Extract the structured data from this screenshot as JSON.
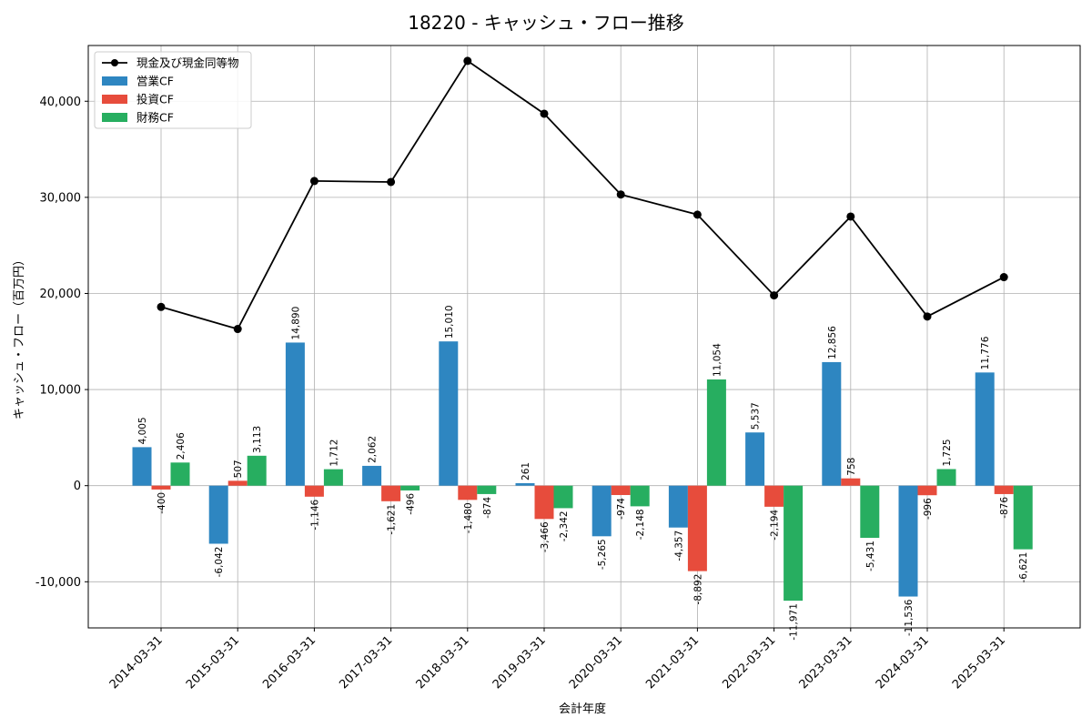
{
  "chart_data": {
    "type": "bar",
    "title": "18220 - キャッシュ・フロー推移",
    "xlabel": "会計年度",
    "ylabel": "キャッシュ・フロー（百万円）",
    "categories": [
      "2014-03-31",
      "2015-03-31",
      "2016-03-31",
      "2017-03-31",
      "2018-03-31",
      "2019-03-31",
      "2020-03-31",
      "2021-03-31",
      "2022-03-31",
      "2023-03-31",
      "2024-03-31",
      "2025-03-31"
    ],
    "series": [
      {
        "name": "営業CF",
        "kind": "bar",
        "color": "#2e86c1",
        "values": [
          4005,
          -6042,
          14890,
          2062,
          15010,
          261,
          -5265,
          -4357,
          5537,
          12856,
          -11536,
          11776
        ],
        "labels": [
          "4,005",
          "-6,042",
          "14,890",
          "2,062",
          "15,010",
          "261",
          "-5,265",
          "-4,357",
          "5,537",
          "12,856",
          "-11,536",
          "11,776"
        ]
      },
      {
        "name": "投資CF",
        "kind": "bar",
        "color": "#e74c3c",
        "values": [
          -400,
          507,
          -1146,
          -1621,
          -1480,
          -3466,
          -974,
          -8892,
          -2194,
          758,
          -996,
          -876
        ],
        "labels": [
          "-400",
          "507",
          "-1,146",
          "-1,621",
          "-1,480",
          "-3,466",
          "-974",
          "-8,892",
          "-2,194",
          "758",
          "-996",
          "-876"
        ]
      },
      {
        "name": "財務CF",
        "kind": "bar",
        "color": "#27ae60",
        "values": [
          2406,
          3113,
          1712,
          -496,
          -874,
          -2342,
          -2148,
          11054,
          -11971,
          -5431,
          1725,
          -6621
        ],
        "labels": [
          "2,406",
          "3,113",
          "1,712",
          "-496",
          "-874",
          "-2,342",
          "-2,148",
          "11,054",
          "-11,971",
          "-5,431",
          "1,725",
          "-6,621"
        ]
      },
      {
        "name": "現金及び現金同等物",
        "kind": "line",
        "color": "#000000",
        "values": [
          18600,
          16300,
          31700,
          31600,
          44200,
          38700,
          30300,
          28200,
          19800,
          28000,
          17600,
          21700
        ]
      }
    ],
    "yticks": [
      -10000,
      0,
      10000,
      20000,
      30000,
      40000
    ],
    "ytick_labels": [
      "-10,000",
      "0",
      "10,000",
      "20,000",
      "30,000",
      "40,000"
    ],
    "ylim": [
      -14800,
      45800
    ],
    "grid": true,
    "legend_position": "top-left"
  }
}
